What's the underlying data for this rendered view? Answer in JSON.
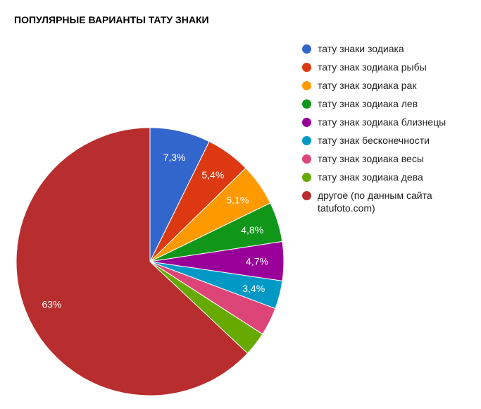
{
  "title": "ПОПУЛЯРНЫЕ ВАРИАНТЫ ТАТУ ЗНАКИ",
  "chart_data": {
    "type": "pie",
    "title": "ПОПУЛЯРНЫЕ ВАРИАНТЫ ТАТУ ЗНАКИ",
    "legend_position": "right",
    "start_angle_deg": 0,
    "direction": "clockwise",
    "slices": [
      {
        "label": "тату знаки зодиака",
        "value": 7.3,
        "display": "7,3%",
        "color": "#3366cc"
      },
      {
        "label": "тату знак зодиака рыбы",
        "value": 5.4,
        "display": "5,4%",
        "color": "#dc3912"
      },
      {
        "label": "тату знак зодиака рак",
        "value": 5.1,
        "display": "5,1%",
        "color": "#ff9900"
      },
      {
        "label": "тату знак зодиака лев",
        "value": 4.8,
        "display": "4,8%",
        "color": "#109618"
      },
      {
        "label": "тату знак зодиака близнецы",
        "value": 4.7,
        "display": "4,7%",
        "color": "#990099"
      },
      {
        "label": "тату знак бесконечности",
        "value": 3.4,
        "display": "3,4%",
        "color": "#0099c6"
      },
      {
        "label": "тату знак зодиака весы",
        "value": 3.4,
        "display": "",
        "color": "#dd4477"
      },
      {
        "label": "тату знак зодиака дева",
        "value": 2.9,
        "display": "",
        "color": "#66aa00"
      },
      {
        "label": "другое (по данным сайта tatufoto.com)",
        "value": 63,
        "display": "63%",
        "color": "#b82e2e"
      }
    ]
  }
}
